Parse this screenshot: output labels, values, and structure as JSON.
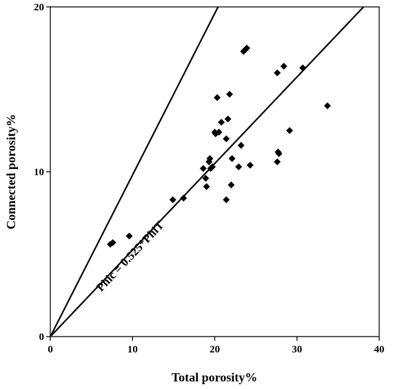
{
  "chart_data": {
    "type": "scatter",
    "title": "",
    "xlabel": "Total porosity%",
    "ylabel": "Connected porosity%",
    "xlim": [
      0,
      40
    ],
    "ylim": [
      0,
      20
    ],
    "xticks": [
      "0",
      "10",
      "20",
      "30",
      "40"
    ],
    "yticks": [
      "0",
      "10",
      "20"
    ],
    "grid": false,
    "marker": "diamond",
    "colors": {
      "marker": "#000000",
      "line": "#000000"
    },
    "points": [
      {
        "x": 7.3,
        "y": 5.6
      },
      {
        "x": 7.6,
        "y": 5.7
      },
      {
        "x": 9.6,
        "y": 6.1
      },
      {
        "x": 14.9,
        "y": 8.3
      },
      {
        "x": 16.2,
        "y": 8.4
      },
      {
        "x": 18.6,
        "y": 10.2
      },
      {
        "x": 18.9,
        "y": 9.6
      },
      {
        "x": 19.0,
        "y": 9.1
      },
      {
        "x": 19.3,
        "y": 10.6
      },
      {
        "x": 19.4,
        "y": 10.8
      },
      {
        "x": 19.5,
        "y": 10.2
      },
      {
        "x": 19.7,
        "y": 10.3
      },
      {
        "x": 20.0,
        "y": 12.4
      },
      {
        "x": 20.1,
        "y": 12.3
      },
      {
        "x": 20.3,
        "y": 14.5
      },
      {
        "x": 20.5,
        "y": 12.4
      },
      {
        "x": 20.8,
        "y": 13.0
      },
      {
        "x": 21.4,
        "y": 12.0
      },
      {
        "x": 21.4,
        "y": 8.3
      },
      {
        "x": 21.6,
        "y": 13.2
      },
      {
        "x": 21.8,
        "y": 14.7
      },
      {
        "x": 22.0,
        "y": 9.2
      },
      {
        "x": 22.1,
        "y": 10.8
      },
      {
        "x": 22.9,
        "y": 10.3
      },
      {
        "x": 23.2,
        "y": 11.6
      },
      {
        "x": 23.5,
        "y": 17.3
      },
      {
        "x": 23.7,
        "y": 17.4
      },
      {
        "x": 23.9,
        "y": 17.5
      },
      {
        "x": 24.3,
        "y": 10.4
      },
      {
        "x": 27.6,
        "y": 16.0
      },
      {
        "x": 27.6,
        "y": 10.6
      },
      {
        "x": 27.7,
        "y": 11.2
      },
      {
        "x": 27.8,
        "y": 11.1
      },
      {
        "x": 28.4,
        "y": 16.4
      },
      {
        "x": 29.1,
        "y": 12.5
      },
      {
        "x": 30.7,
        "y": 16.3
      },
      {
        "x": 33.7,
        "y": 14.0
      }
    ],
    "lines": [
      {
        "x": [
          0,
          40
        ],
        "y": [
          0,
          21
        ]
      },
      {
        "x": [
          0,
          20.4
        ],
        "y": [
          0,
          20
        ]
      }
    ],
    "annotations": [
      {
        "text": "Phic = 0.525*PhiT",
        "x": 6.2,
        "y": 2.7
      }
    ]
  }
}
